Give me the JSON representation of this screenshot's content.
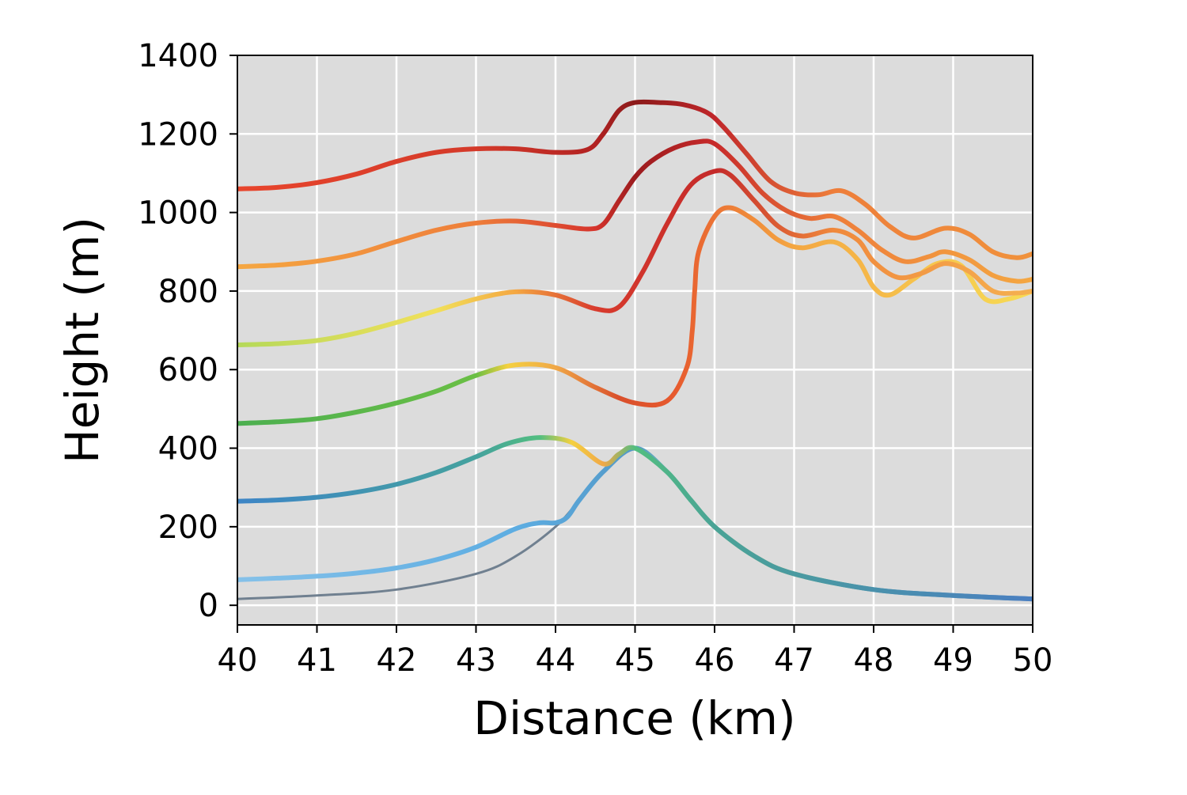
{
  "chart_data": {
    "type": "line",
    "title": "",
    "xlabel": "Distance (km)",
    "ylabel": "Height (m)",
    "xlim": [
      40,
      50
    ],
    "ylim": [
      -50,
      1400
    ],
    "xticks": [
      40,
      41,
      42,
      43,
      44,
      45,
      46,
      47,
      48,
      49,
      50
    ],
    "yticks": [
      0,
      200,
      400,
      600,
      800,
      1000,
      1200,
      1400
    ],
    "grid": true,
    "background_color": "#dcdcdc",
    "grid_color": "#ffffff",
    "terrain": {
      "color": "#708090",
      "x": [
        40,
        41,
        42,
        43,
        43.5,
        44,
        44.3,
        44.6,
        45,
        45.4,
        45.7,
        46,
        46.5,
        47,
        48,
        49,
        50
      ],
      "y": [
        16,
        25,
        40,
        80,
        125,
        200,
        268,
        340,
        400,
        340,
        268,
        200,
        125,
        80,
        40,
        25,
        16
      ]
    },
    "series": [
      {
        "x": [
          40,
          40.5,
          41,
          41.5,
          42,
          42.5,
          43,
          43.5,
          43.8,
          44,
          44.15,
          44.3,
          44.6,
          45,
          45.4,
          45.7,
          46,
          46.5,
          47,
          48,
          49,
          50
        ],
        "y": [
          65,
          69,
          74,
          82,
          95,
          116,
          148,
          195,
          210,
          210,
          225,
          268,
          340,
          400,
          340,
          268,
          200,
          125,
          80,
          40,
          25,
          16
        ],
        "stops": [
          [
            0,
            "#85c1e9"
          ],
          [
            0.35,
            "#5dade2"
          ],
          [
            0.5,
            "#5499c7"
          ],
          [
            0.58,
            "#7dcea0"
          ],
          [
            0.68,
            "#f7dc6f"
          ],
          [
            0.74,
            "#52be80"
          ],
          [
            0.82,
            "#5499c7"
          ],
          [
            1,
            "#5b8fc7"
          ]
        ]
      },
      {
        "x": [
          40,
          40.5,
          41,
          41.5,
          42,
          42.5,
          43,
          43.4,
          43.8,
          44.2,
          44.6,
          44.8,
          45,
          45.4,
          45.7,
          46,
          46.5,
          47,
          48,
          49,
          50
        ],
        "y": [
          265,
          268,
          275,
          288,
          308,
          338,
          378,
          412,
          427,
          415,
          360,
          385,
          400,
          340,
          268,
          200,
          125,
          80,
          40,
          25,
          16
        ],
        "stops": [
          [
            0,
            "#3d85c6"
          ],
          [
            0.3,
            "#45a29e"
          ],
          [
            0.38,
            "#52be80"
          ],
          [
            0.42,
            "#f4d03f"
          ],
          [
            0.46,
            "#f0a848"
          ],
          [
            0.5,
            "#52be80"
          ],
          [
            0.6,
            "#4aa396"
          ],
          [
            1,
            "#4a7fc1"
          ]
        ]
      },
      {
        "x": [
          40,
          40.5,
          41,
          41.5,
          42,
          42.5,
          43,
          43.5,
          44,
          44.5,
          45,
          45.4,
          45.65,
          45.72,
          45.75,
          45.8,
          46,
          46.2,
          46.5,
          46.8,
          47.1,
          47.5,
          47.8,
          48,
          48.2,
          48.5,
          48.8,
          49.1,
          49.4,
          49.7,
          50
        ],
        "y": [
          463,
          467,
          475,
          492,
          515,
          545,
          585,
          612,
          605,
          555,
          515,
          520,
          605,
          700,
          800,
          900,
          990,
          1012,
          980,
          930,
          910,
          925,
          880,
          810,
          790,
          830,
          870,
          865,
          780,
          780,
          800
        ],
        "stops": [
          [
            0,
            "#4caf50"
          ],
          [
            0.3,
            "#6abf45"
          ],
          [
            0.34,
            "#f4d03f"
          ],
          [
            0.4,
            "#f0a848"
          ],
          [
            0.48,
            "#d94f2b"
          ],
          [
            0.55,
            "#e75a2e"
          ],
          [
            0.7,
            "#f4a742"
          ],
          [
            1,
            "#f7dc55"
          ]
        ]
      },
      {
        "x": [
          40,
          40.5,
          41,
          41.5,
          42,
          42.5,
          43,
          43.5,
          44,
          44.5,
          44.8,
          45.1,
          45.4,
          45.7,
          46,
          46.2,
          46.5,
          46.8,
          47.1,
          47.5,
          47.8,
          48,
          48.3,
          48.6,
          48.9,
          49.2,
          49.5,
          49.8,
          50
        ],
        "y": [
          663,
          666,
          674,
          693,
          720,
          750,
          780,
          798,
          790,
          755,
          760,
          850,
          970,
          1070,
          1105,
          1095,
          1030,
          965,
          940,
          955,
          930,
          875,
          835,
          845,
          870,
          850,
          800,
          795,
          800
        ],
        "stops": [
          [
            0,
            "#b5d95a"
          ],
          [
            0.25,
            "#f1e05a"
          ],
          [
            0.35,
            "#f4a742"
          ],
          [
            0.45,
            "#d83b2d"
          ],
          [
            0.6,
            "#c42a2a"
          ],
          [
            0.75,
            "#f0893c"
          ],
          [
            1,
            "#f5b050"
          ]
        ]
      },
      {
        "x": [
          40,
          40.5,
          41,
          41.5,
          42,
          42.5,
          43,
          43.5,
          44,
          44.4,
          44.6,
          44.8,
          45,
          45.2,
          45.5,
          45.8,
          46,
          46.3,
          46.6,
          46.9,
          47.2,
          47.5,
          47.8,
          48.1,
          48.4,
          48.7,
          48.9,
          49.2,
          49.5,
          49.8,
          50
        ],
        "y": [
          862,
          866,
          876,
          895,
          926,
          955,
          973,
          978,
          967,
          958,
          970,
          1030,
          1090,
          1130,
          1165,
          1180,
          1175,
          1120,
          1050,
          1005,
          985,
          990,
          955,
          905,
          875,
          888,
          900,
          880,
          840,
          825,
          830
        ],
        "stops": [
          [
            0,
            "#f5a742"
          ],
          [
            0.3,
            "#ee7e3a"
          ],
          [
            0.45,
            "#d6342c"
          ],
          [
            0.5,
            "#9b1b1e"
          ],
          [
            0.6,
            "#c72a2a"
          ],
          [
            0.75,
            "#ee7e3a"
          ],
          [
            1,
            "#f4a742"
          ]
        ]
      },
      {
        "x": [
          40,
          40.5,
          41,
          41.5,
          42,
          42.5,
          43,
          43.5,
          44,
          44.4,
          44.6,
          44.8,
          45,
          45.3,
          45.6,
          45.9,
          46.1,
          46.4,
          46.7,
          47,
          47.3,
          47.6,
          47.9,
          48.2,
          48.5,
          48.9,
          49.2,
          49.5,
          49.8,
          50
        ],
        "y": [
          1060,
          1064,
          1076,
          1098,
          1130,
          1153,
          1162,
          1162,
          1153,
          1160,
          1200,
          1260,
          1280,
          1280,
          1275,
          1255,
          1220,
          1150,
          1080,
          1050,
          1045,
          1055,
          1020,
          965,
          935,
          960,
          945,
          900,
          885,
          895
        ],
        "stops": [
          [
            0,
            "#e8452c"
          ],
          [
            0.3,
            "#d43a2a"
          ],
          [
            0.45,
            "#b22222"
          ],
          [
            0.5,
            "#8b1a1a"
          ],
          [
            0.6,
            "#c0262a"
          ],
          [
            0.75,
            "#ee7e3a"
          ],
          [
            1,
            "#f0923c"
          ]
        ]
      }
    ]
  }
}
